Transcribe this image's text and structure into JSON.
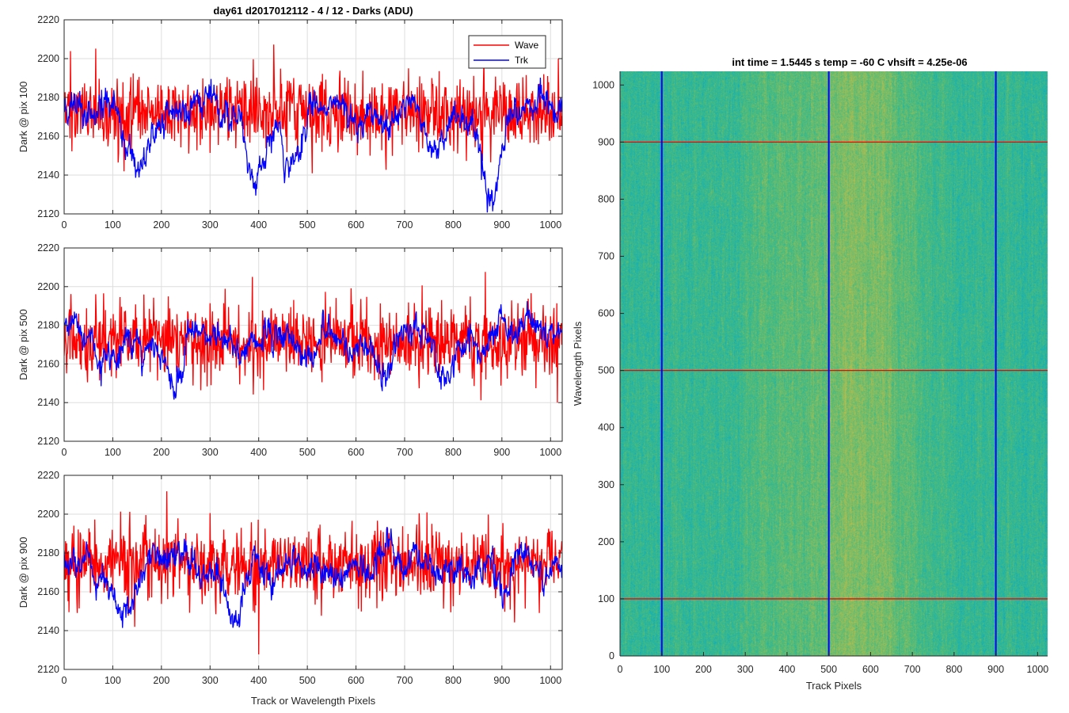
{
  "chart_data": [
    {
      "type": "line",
      "title": "day61 d2017012112 - 4 / 12 - Darks (ADU)",
      "xlabel": "",
      "ylabel": "Dark @ pix 100",
      "xlim": [
        0,
        1024
      ],
      "ylim": [
        2120,
        2220
      ],
      "xticks": [
        0,
        100,
        200,
        300,
        400,
        500,
        600,
        700,
        800,
        900,
        1000
      ],
      "yticks": [
        2120,
        2140,
        2160,
        2180,
        2200,
        2220
      ],
      "grid": true,
      "legend": {
        "placement": "top-right",
        "entries": [
          "Wave",
          "Trk"
        ]
      },
      "series": [
        {
          "name": "Wave",
          "color": "#ff0000",
          "mean": 2172,
          "noise": 9,
          "spike": 16,
          "approximate": true
        },
        {
          "name": "Trk",
          "color": "#0000ff",
          "mean": 2172,
          "noise": 7,
          "approximate": true,
          "dips": [
            [
              150,
              2148
            ],
            [
              390,
              2142
            ],
            [
              470,
              2146
            ],
            [
              760,
              2150
            ],
            [
              880,
              2134
            ]
          ]
        }
      ]
    },
    {
      "type": "line",
      "title": "",
      "xlabel": "",
      "ylabel": "Dark @ pix 500",
      "xlim": [
        0,
        1024
      ],
      "ylim": [
        2120,
        2220
      ],
      "xticks": [
        0,
        100,
        200,
        300,
        400,
        500,
        600,
        700,
        800,
        900,
        1000
      ],
      "yticks": [
        2120,
        2140,
        2160,
        2180,
        2200,
        2220
      ],
      "grid": true,
      "series": [
        {
          "name": "Wave",
          "color": "#ff0000",
          "mean": 2172,
          "noise": 9,
          "spike": 16,
          "approximate": true
        },
        {
          "name": "Trk",
          "color": "#0000ff",
          "mean": 2175,
          "noise": 6,
          "approximate": true,
          "dips": [
            [
              80,
              2158
            ],
            [
              225,
              2146
            ],
            [
              490,
              2158
            ],
            [
              660,
              2156
            ],
            [
              780,
              2155
            ]
          ]
        }
      ]
    },
    {
      "type": "line",
      "title": "",
      "xlabel": "Track or Wavelength Pixels",
      "ylabel": "Dark @ pix 900",
      "xlim": [
        0,
        1024
      ],
      "ylim": [
        2120,
        2220
      ],
      "xticks": [
        0,
        100,
        200,
        300,
        400,
        500,
        600,
        700,
        800,
        900,
        1000
      ],
      "yticks": [
        2120,
        2140,
        2160,
        2180,
        2200,
        2220
      ],
      "grid": true,
      "series": [
        {
          "name": "Wave",
          "color": "#ff0000",
          "mean": 2174,
          "noise": 9,
          "spike": 16,
          "approximate": true
        },
        {
          "name": "Trk",
          "color": "#0000ff",
          "mean": 2174,
          "noise": 6,
          "approximate": true,
          "dips": [
            [
              120,
              2148
            ],
            [
              350,
              2152
            ],
            [
              430,
              2162
            ],
            [
              900,
              2160
            ]
          ]
        }
      ]
    },
    {
      "type": "heatmap",
      "title": "int time = 1.5445 s    temp = -60 C    vhsift = 4.25e-06",
      "xlabel": "Track Pixels",
      "ylabel": "Wavelength Pixels",
      "xlim": [
        0,
        1024
      ],
      "ylim": [
        0,
        1024
      ],
      "xticks": [
        0,
        100,
        200,
        300,
        400,
        500,
        600,
        700,
        800,
        900,
        1000
      ],
      "yticks": [
        0,
        100,
        200,
        300,
        400,
        500,
        600,
        700,
        800,
        900,
        1000
      ],
      "colormap": "parula",
      "description_band_center_x": 580,
      "markers": {
        "vertical": {
          "color": "#0000ff",
          "values": [
            100,
            500,
            900
          ]
        },
        "horizontal": {
          "color": "#ff0000",
          "values": [
            100,
            500,
            900
          ]
        }
      }
    }
  ]
}
